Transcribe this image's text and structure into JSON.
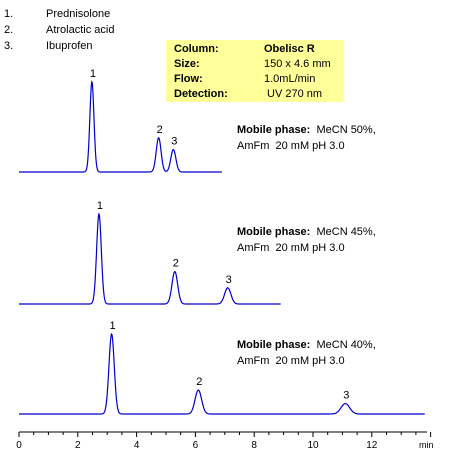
{
  "legend": [
    {
      "num": "1.",
      "name": "Prednisolone"
    },
    {
      "num": "2.",
      "name": "Atrolactic acid"
    },
    {
      "num": "3.",
      "name": "Ibuprofen"
    }
  ],
  "conditions": [
    {
      "label": "Column:",
      "value": "Obelisc R",
      "bold": true
    },
    {
      "label": "Size:",
      "value": "150 x 4.6 mm",
      "bold": false
    },
    {
      "label": "Flow:",
      "value": "1.0mL/min",
      "bold": false
    },
    {
      "label": "Detection:",
      "value": " UV 270 nm",
      "bold": false
    }
  ],
  "chart_data": {
    "type": "line",
    "x_axis": {
      "ticks": [
        "0",
        "2",
        "4",
        "6",
        "8",
        "10",
        "12"
      ],
      "unit_label": "min",
      "xlim": [
        0,
        14
      ]
    },
    "colors": {
      "trace": "#0000cc",
      "axis": "#000000",
      "box": "#ffff99"
    },
    "series": [
      {
        "mobile_phase_label": "Mobile phase:",
        "mobile_phase_line1": "MeCN 50%,",
        "mobile_phase_line2": "AmFm  20 mM pH 3.0",
        "x_end": 6.9,
        "peaks": [
          {
            "label": "1",
            "rt": 2.48,
            "height": 1.0
          },
          {
            "label": "2",
            "rt": 4.75,
            "height": 0.38
          },
          {
            "label": "3",
            "rt": 5.25,
            "height": 0.25
          }
        ]
      },
      {
        "mobile_phase_label": "Mobile phase:",
        "mobile_phase_line1": "MeCN 45%,",
        "mobile_phase_line2": "AmFm  20 mM pH 3.0",
        "x_end": 8.9,
        "peaks": [
          {
            "label": "1",
            "rt": 2.72,
            "height": 1.0
          },
          {
            "label": "2",
            "rt": 5.3,
            "height": 0.36
          },
          {
            "label": "3",
            "rt": 7.1,
            "height": 0.18
          }
        ]
      },
      {
        "mobile_phase_label": "Mobile phase:",
        "mobile_phase_line1": "MeCN 40%,",
        "mobile_phase_line2": "AmFm  20 mM pH 3.0",
        "x_end": 13.8,
        "peaks": [
          {
            "label": "1",
            "rt": 3.15,
            "height": 1.0
          },
          {
            "label": "2",
            "rt": 6.1,
            "height": 0.3
          },
          {
            "label": "3",
            "rt": 11.1,
            "height": 0.13
          }
        ]
      }
    ]
  }
}
